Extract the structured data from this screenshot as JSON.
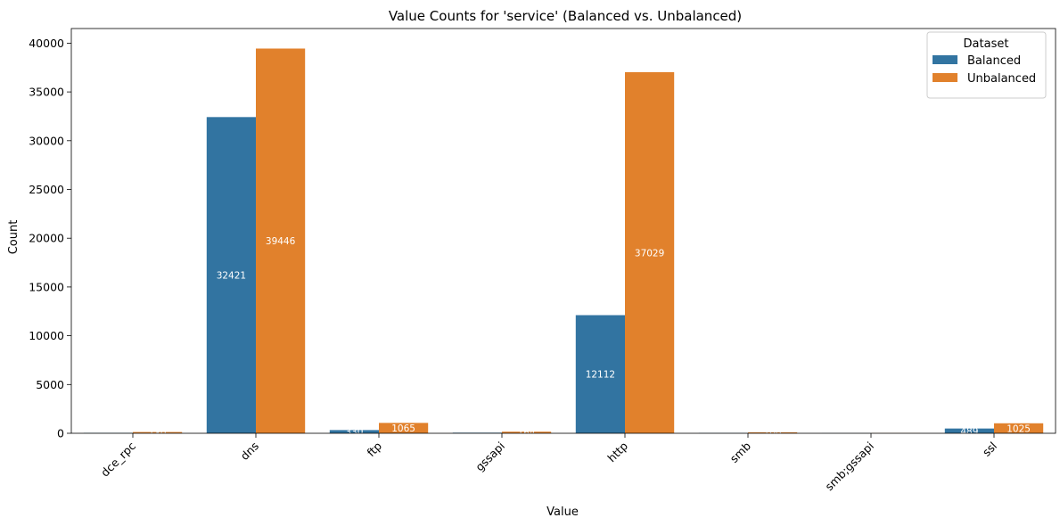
{
  "chart_data": {
    "type": "bar",
    "title": "Value Counts for 'service' (Balanced vs. Unbalanced)",
    "xlabel": "Value",
    "ylabel": "Count",
    "categories": [
      "dce_rpc",
      "dns",
      "ftp",
      "gssapi",
      "http",
      "smb",
      "smb;gssapi",
      "ssl"
    ],
    "series": [
      {
        "name": "Balanced",
        "values": [
          40,
          32421,
          330,
          60,
          12112,
          30,
          10,
          489
        ],
        "color": "#3274a1",
        "data_labels": [
          "",
          "32421",
          "330",
          "",
          "12112",
          "",
          "",
          "489"
        ]
      },
      {
        "name": "Unbalanced",
        "values": [
          130,
          39446,
          1065,
          164,
          37029,
          100,
          20,
          1025
        ],
        "color": "#e1812c",
        "data_labels": [
          "130",
          "39446",
          "1065",
          "164",
          "37029",
          "100",
          "",
          "1025"
        ]
      }
    ],
    "ylim": [
      0,
      41500
    ],
    "yticks": [
      0,
      5000,
      10000,
      15000,
      20000,
      25000,
      30000,
      35000,
      40000
    ],
    "legend": {
      "title": "Dataset",
      "placement": "top-right"
    },
    "grid": false
  }
}
